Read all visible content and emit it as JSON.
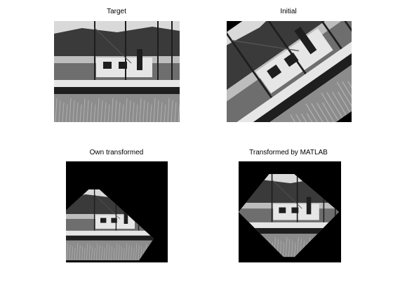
{
  "figure": {
    "panels": [
      {
        "id": "target",
        "title": "Target",
        "rotation_deg": 0
      },
      {
        "id": "initial",
        "title": "Initial",
        "rotation_deg": -35
      },
      {
        "id": "own",
        "title": "Own transformed",
        "rotation_deg": 45
      },
      {
        "id": "matlab",
        "title": "Transformed by MATLAB",
        "rotation_deg": 45
      }
    ]
  },
  "colors": {
    "sky": "#d9d9d9",
    "hills": "#3a3a3a",
    "water": "#bdbdbd",
    "grass": "#8c8c8c",
    "boat": "#e6e6e6",
    "dark": "#1e1e1e",
    "background": "#000000"
  }
}
